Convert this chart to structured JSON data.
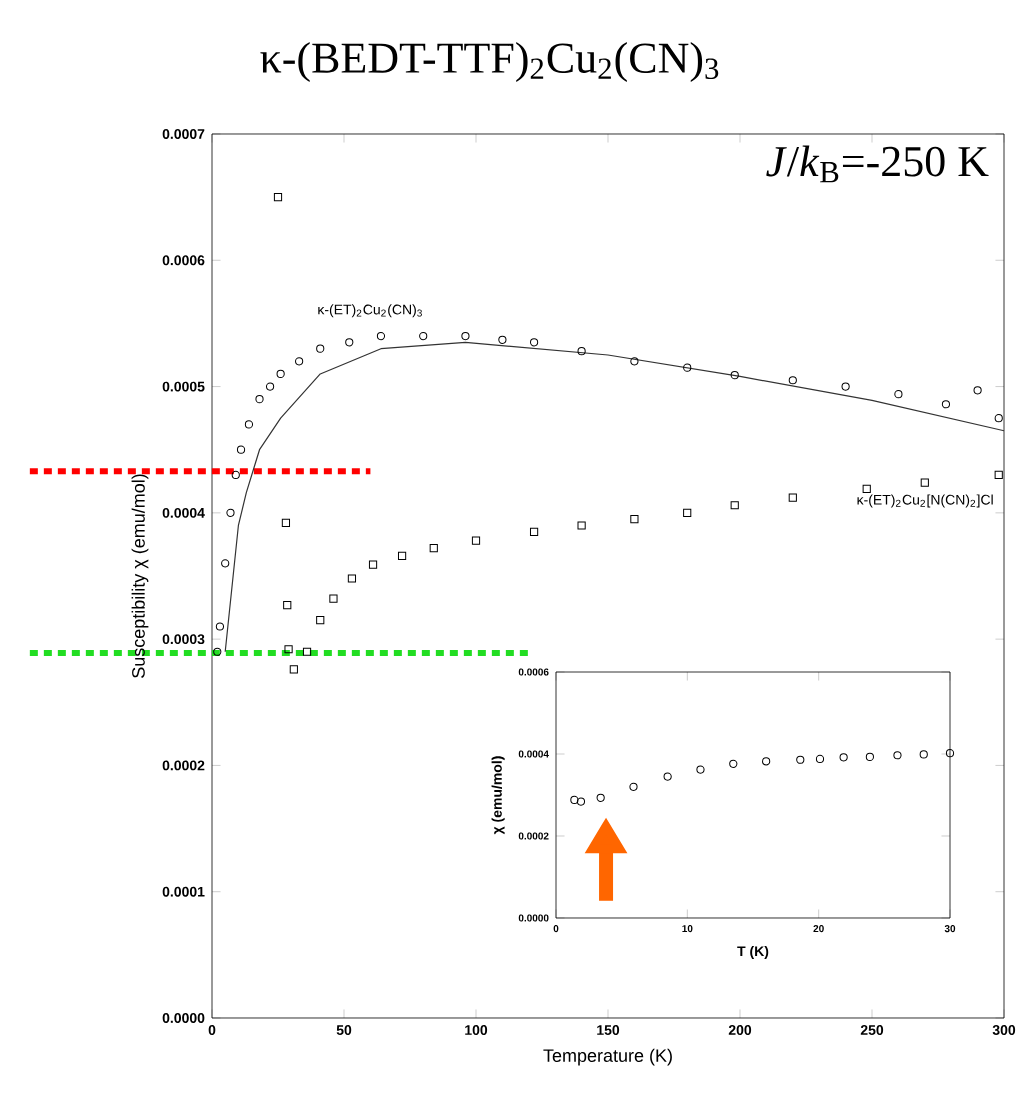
{
  "chart_data": [
    {
      "type": "scatter",
      "title": "κ-(BEDT-TTF)$_{2}$Cu$_{2}$(CN)$_{3}$",
      "xlabel": "Temperature (K)",
      "ylabel": "Susceptibility  χ  (emu/mol)",
      "annotations": [
        "*J*/*k*$_{B}$=-250 K"
      ],
      "xlim": [
        0,
        300
      ],
      "ylim": [
        0,
        0.0007
      ],
      "xticks": [
        0,
        50,
        100,
        150,
        200,
        250,
        300
      ],
      "yticks": [
        {
          "value": 0,
          "label": "0.0000"
        },
        {
          "value": 0.0001,
          "label": "0.0001"
        },
        {
          "value": 0.0002,
          "label": "0.0002"
        },
        {
          "value": 0.0003,
          "label": "0.0003"
        },
        {
          "value": 0.0004,
          "label": "0.0004"
        },
        {
          "value": 0.0005,
          "label": "0.0005"
        },
        {
          "value": 0.0006,
          "label": "0.0006"
        },
        {
          "value": 0.0007,
          "label": "0.0007"
        }
      ],
      "ref_lines": [
        {
          "axis": "y",
          "value": 0.000433,
          "color": "#ff0000",
          "line_style": "dotted"
        },
        {
          "axis": "y",
          "value": 0.000289,
          "color": "#22dd22",
          "line_style": "dotted"
        }
      ],
      "series": [
        {
          "name": "κ-(ET)$_{2}$Cu$_{2}$(CN)$_{3}$",
          "marker": "circle",
          "color": "#000000",
          "x": [
            2,
            3,
            5,
            7,
            9,
            11,
            14,
            18,
            22,
            26,
            33,
            41,
            52,
            64,
            80,
            96,
            110,
            122,
            140,
            160,
            180,
            198,
            220,
            240,
            260,
            278,
            290,
            298
          ],
          "values": [
            0.00029,
            0.00031,
            0.00036,
            0.0004,
            0.00043,
            0.00045,
            0.00047,
            0.00049,
            0.0005,
            0.00051,
            0.00052,
            0.00053,
            0.000535,
            0.00054,
            0.00054,
            0.00054,
            0.000537,
            0.000535,
            0.000528,
            0.00052,
            0.000515,
            0.000509,
            0.000505,
            0.0005,
            0.000494,
            0.000486,
            0.000497,
            0.000475
          ]
        },
        {
          "type": "line",
          "marker": "none",
          "color": "#333333",
          "x": [
            5,
            8,
            10,
            13,
            18,
            26,
            41,
            64,
            96,
            150,
            200,
            250,
            300
          ],
          "values": [
            0.00029,
            0.00035,
            0.00039,
            0.000416,
            0.00045,
            0.000475,
            0.00051,
            0.00053,
            0.000535,
            0.000525,
            0.000508,
            0.000489,
            0.000465
          ]
        },
        {
          "name": "κ-(ET)$_{2}$Cu$_{2}$[N(CN)$_{2}$]Cl",
          "marker": "square",
          "color": "#000000",
          "x": [
            25,
            28,
            28.5,
            29,
            31,
            36,
            41,
            46,
            53,
            61,
            72,
            84,
            100,
            122,
            140,
            160,
            180,
            198,
            220,
            248,
            270,
            298
          ],
          "values": [
            0.00065,
            0.000392,
            0.000327,
            0.000292,
            0.000276,
            0.00029,
            0.000315,
            0.000332,
            0.000348,
            0.000359,
            0.000366,
            0.000372,
            0.000378,
            0.000385,
            0.00039,
            0.000395,
            0.0004,
            0.000406,
            0.000412,
            0.000419,
            0.000424,
            0.00043
          ]
        }
      ]
    },
    {
      "type": "scatter",
      "xlabel": "T   (K)",
      "ylabel": "χ (emu/mol)",
      "xlim": [
        0,
        30
      ],
      "ylim": [
        0,
        0.0006
      ],
      "xticks": [
        0,
        10,
        20,
        30
      ],
      "yticks": [
        {
          "value": 0,
          "label": "0.0000"
        },
        {
          "value": 0.0002,
          "label": "0.0002"
        },
        {
          "value": 0.0004,
          "label": "0.0004"
        },
        {
          "value": 0.0006,
          "label": "0.0006"
        }
      ],
      "series": [
        {
          "marker": "circle",
          "color": "#000000",
          "x": [
            1.4,
            1.9,
            3.4,
            5.9,
            8.5,
            11,
            13.5,
            16,
            18.6,
            20.1,
            21.9,
            23.9,
            26,
            28,
            30
          ],
          "values": [
            0.000288,
            0.000284,
            0.000293,
            0.00032,
            0.000345,
            0.000362,
            0.000376,
            0.000382,
            0.000386,
            0.000388,
            0.000392,
            0.000393,
            0.000397,
            0.000399,
            0.000402
          ]
        }
      ]
    }
  ]
}
